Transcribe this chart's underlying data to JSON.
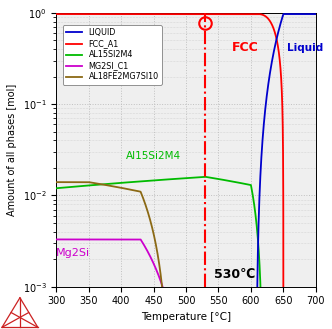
{
  "title": "",
  "xlabel": "Temperature [°C]",
  "ylabel": "Amount of all phases [mol]",
  "xlim": [
    300,
    700
  ],
  "xline": 530,
  "legend_labels": [
    "LIQUID",
    "FCC_A1",
    "AL15SI2M4",
    "MG2SI_C1",
    "AL18FE2MG7SI10"
  ],
  "legend_colors": [
    "#0000cd",
    "#ff0000",
    "#00bb00",
    "#cc00cc",
    "#8b6914"
  ],
  "label_FCC": "FCC",
  "label_Liquid": "Liquid",
  "label_Al15Si2M4": "Al15Si2M4",
  "label_Mg2Si": "Mg2Si",
  "label_530": "530℃",
  "bg_color": "#efefef",
  "grid_color": "#c0c0c0",
  "annotation_circle_color": "#ff0000",
  "dashed_line_color": "#ff0000",
  "fcc_color": "#ff0000",
  "liquid_color": "#0000cd",
  "al15_color": "#00bb00",
  "mg2si_color": "#cc00cc",
  "al18_color": "#8b6914"
}
